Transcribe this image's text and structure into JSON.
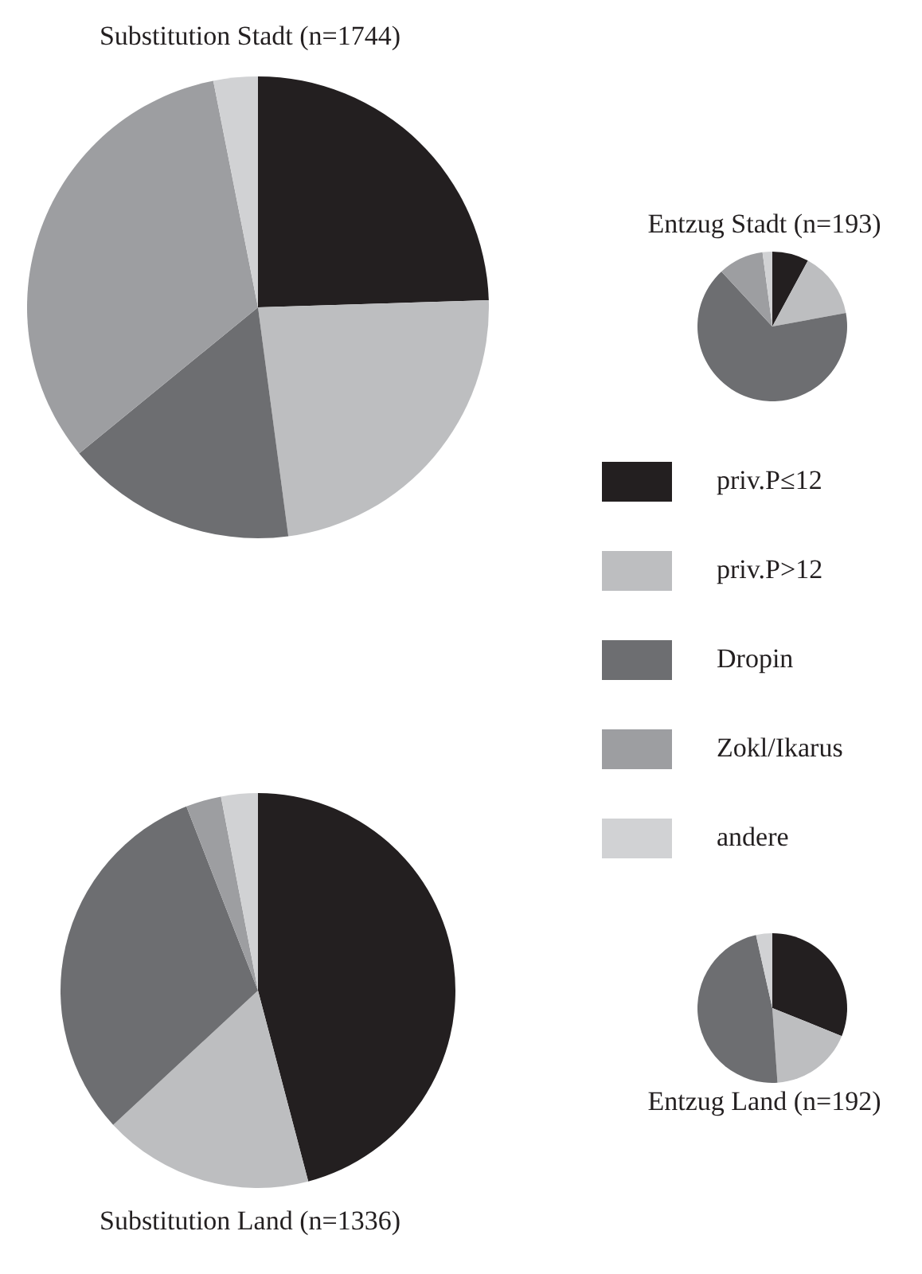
{
  "chart_data": [
    {
      "type": "pie",
      "title": "Substitution Stadt (n=1744)",
      "categories": [
        null,
        null,
        null,
        null,
        null
      ],
      "values": [
        24.5,
        23.4,
        16.2,
        32.8,
        3.1
      ],
      "colors": [
        "#231f20",
        "#bdbec0",
        "#6d6e71",
        "#9d9ea1",
        "#d1d2d4"
      ]
    },
    {
      "type": "pie",
      "title": "Entzug Stadt (n=193)",
      "categories": [
        "priv.P≤12",
        "priv.P>12",
        "Dropin",
        "Zokl/Ikarus",
        "andere"
      ],
      "values": [
        7.9,
        14.2,
        66,
        9.8,
        2.1
      ],
      "colors": [
        "#231f20",
        "#bdbec0",
        "#6d6e71",
        "#9d9ea1",
        "#d1d2d4"
      ],
      "legend": "bottom"
    },
    {
      "type": "pie",
      "title": "Substitution Land (n=1336)",
      "categories": [
        null,
        null,
        null,
        null,
        null
      ],
      "values": [
        45.9,
        17.2,
        31,
        2.9,
        3
      ],
      "colors": [
        "#231f20",
        "#bdbec0",
        "#6d6e71",
        "#9d9ea1",
        "#d1d2d4"
      ]
    },
    {
      "type": "pie",
      "title": "Entzug Land (n=192)",
      "categories": [
        null,
        null,
        null,
        null,
        null
      ],
      "values": [
        31.1,
        17.8,
        47.6,
        0,
        3.5
      ],
      "colors": [
        "#231f20",
        "#bdbec0",
        "#6d6e71",
        "#9d9ea1",
        "#d1d2d4"
      ]
    }
  ]
}
